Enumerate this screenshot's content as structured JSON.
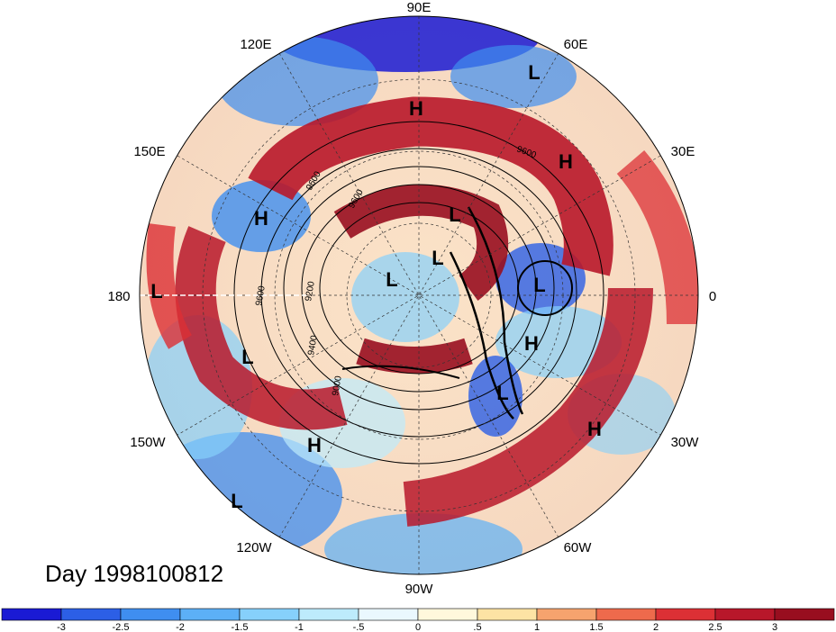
{
  "title": "Day 1998100812",
  "longitude_labels": [
    "90E",
    "60E",
    "30E",
    "0",
    "30W",
    "60W",
    "90W",
    "120W",
    "150W",
    "180",
    "150E",
    "120E"
  ],
  "pressure_centers": [
    "L",
    "H",
    "H",
    "L",
    "H",
    "L",
    "L",
    "L",
    "L",
    "H",
    "L",
    "L",
    "H",
    "H",
    "L"
  ],
  "contour_labels": [
    "9600",
    "9600",
    "9200",
    "9400",
    "9600",
    "9000",
    "9600"
  ],
  "colorbar": {
    "ticks": [
      "-3",
      "-2.5",
      "-2",
      "-1.5",
      "-1",
      "-.5",
      "0",
      ".5",
      "1",
      "1.5",
      "2",
      "2.5",
      "3"
    ],
    "colors": [
      "#1a1ad4",
      "#2c5fe6",
      "#3f8ef0",
      "#5cb0f7",
      "#86d0fb",
      "#bdebfc",
      "#eaf8fe",
      "#fff8dc",
      "#fde3a4",
      "#f6a36e",
      "#ee6a4c",
      "#dc3035",
      "#b8172a",
      "#980e1f"
    ]
  },
  "colors": {
    "strong_negative": "#1a1ad4",
    "strong_positive": "#980e1f",
    "neutral": "#fffbe8"
  }
}
